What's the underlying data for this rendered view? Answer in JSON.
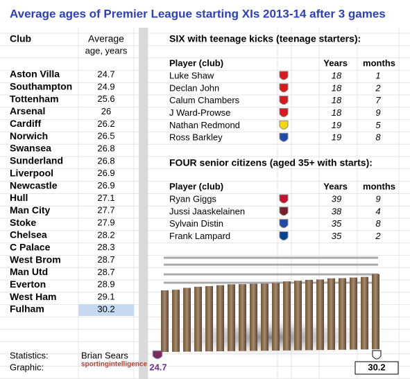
{
  "title": "Average ages of Premier League starting XIs 2013-14 after 3 games",
  "clubs": {
    "header_club": "Club",
    "header_age": [
      "Average",
      "age, years"
    ],
    "rows": [
      [
        "Aston Villa",
        24.7
      ],
      [
        "Southampton",
        24.9
      ],
      [
        "Tottenham",
        25.6
      ],
      [
        "Arsenal",
        26
      ],
      [
        "Cardiff",
        26.2
      ],
      [
        "Norwich",
        26.5
      ],
      [
        "Swansea",
        26.8
      ],
      [
        "Sunderland",
        26.8
      ],
      [
        "Liverpool",
        26.9
      ],
      [
        "Newcastle",
        26.9
      ],
      [
        "Hull",
        27.1
      ],
      [
        "Man City",
        27.7
      ],
      [
        "Stoke",
        27.9
      ],
      [
        "Chelsea",
        28.2
      ],
      [
        "C Palace",
        28.3
      ],
      [
        "West Brom",
        28.7
      ],
      [
        "Man Utd",
        28.7
      ],
      [
        "Everton",
        28.9
      ],
      [
        "West Ham",
        29.1
      ],
      [
        "Fulham",
        30.2
      ]
    ]
  },
  "teen": {
    "title": "SIX with teenage kicks (teenage starters):",
    "headers": [
      "Player (club)",
      "Years",
      "months"
    ],
    "rows": [
      [
        "Luke Shaw",
        18,
        1
      ],
      [
        "Declan John",
        18,
        2
      ],
      [
        "Calum Chambers",
        18,
        7
      ],
      [
        "J Ward-Prowse",
        18,
        9
      ],
      [
        "Nathan Redmond",
        19,
        5
      ],
      [
        "Ross Barkley",
        19,
        8
      ]
    ]
  },
  "senior": {
    "title": "FOUR senior citizens (aged 35+ with starts):",
    "headers": [
      "Player (club)",
      "Years",
      "months"
    ],
    "rows": [
      [
        "Ryan Giggs",
        39,
        9
      ],
      [
        "Jussi Jaaskelainen",
        38,
        4
      ],
      [
        "Sylvain Distin",
        35,
        8
      ],
      [
        "Frank Lampard",
        35,
        2
      ]
    ]
  },
  "footer": {
    "stats_label": "Statistics:",
    "stats_name": "Brian Sears",
    "graphic_label": "Graphic:",
    "graphic_logo": "sportingintelligence"
  }
}
